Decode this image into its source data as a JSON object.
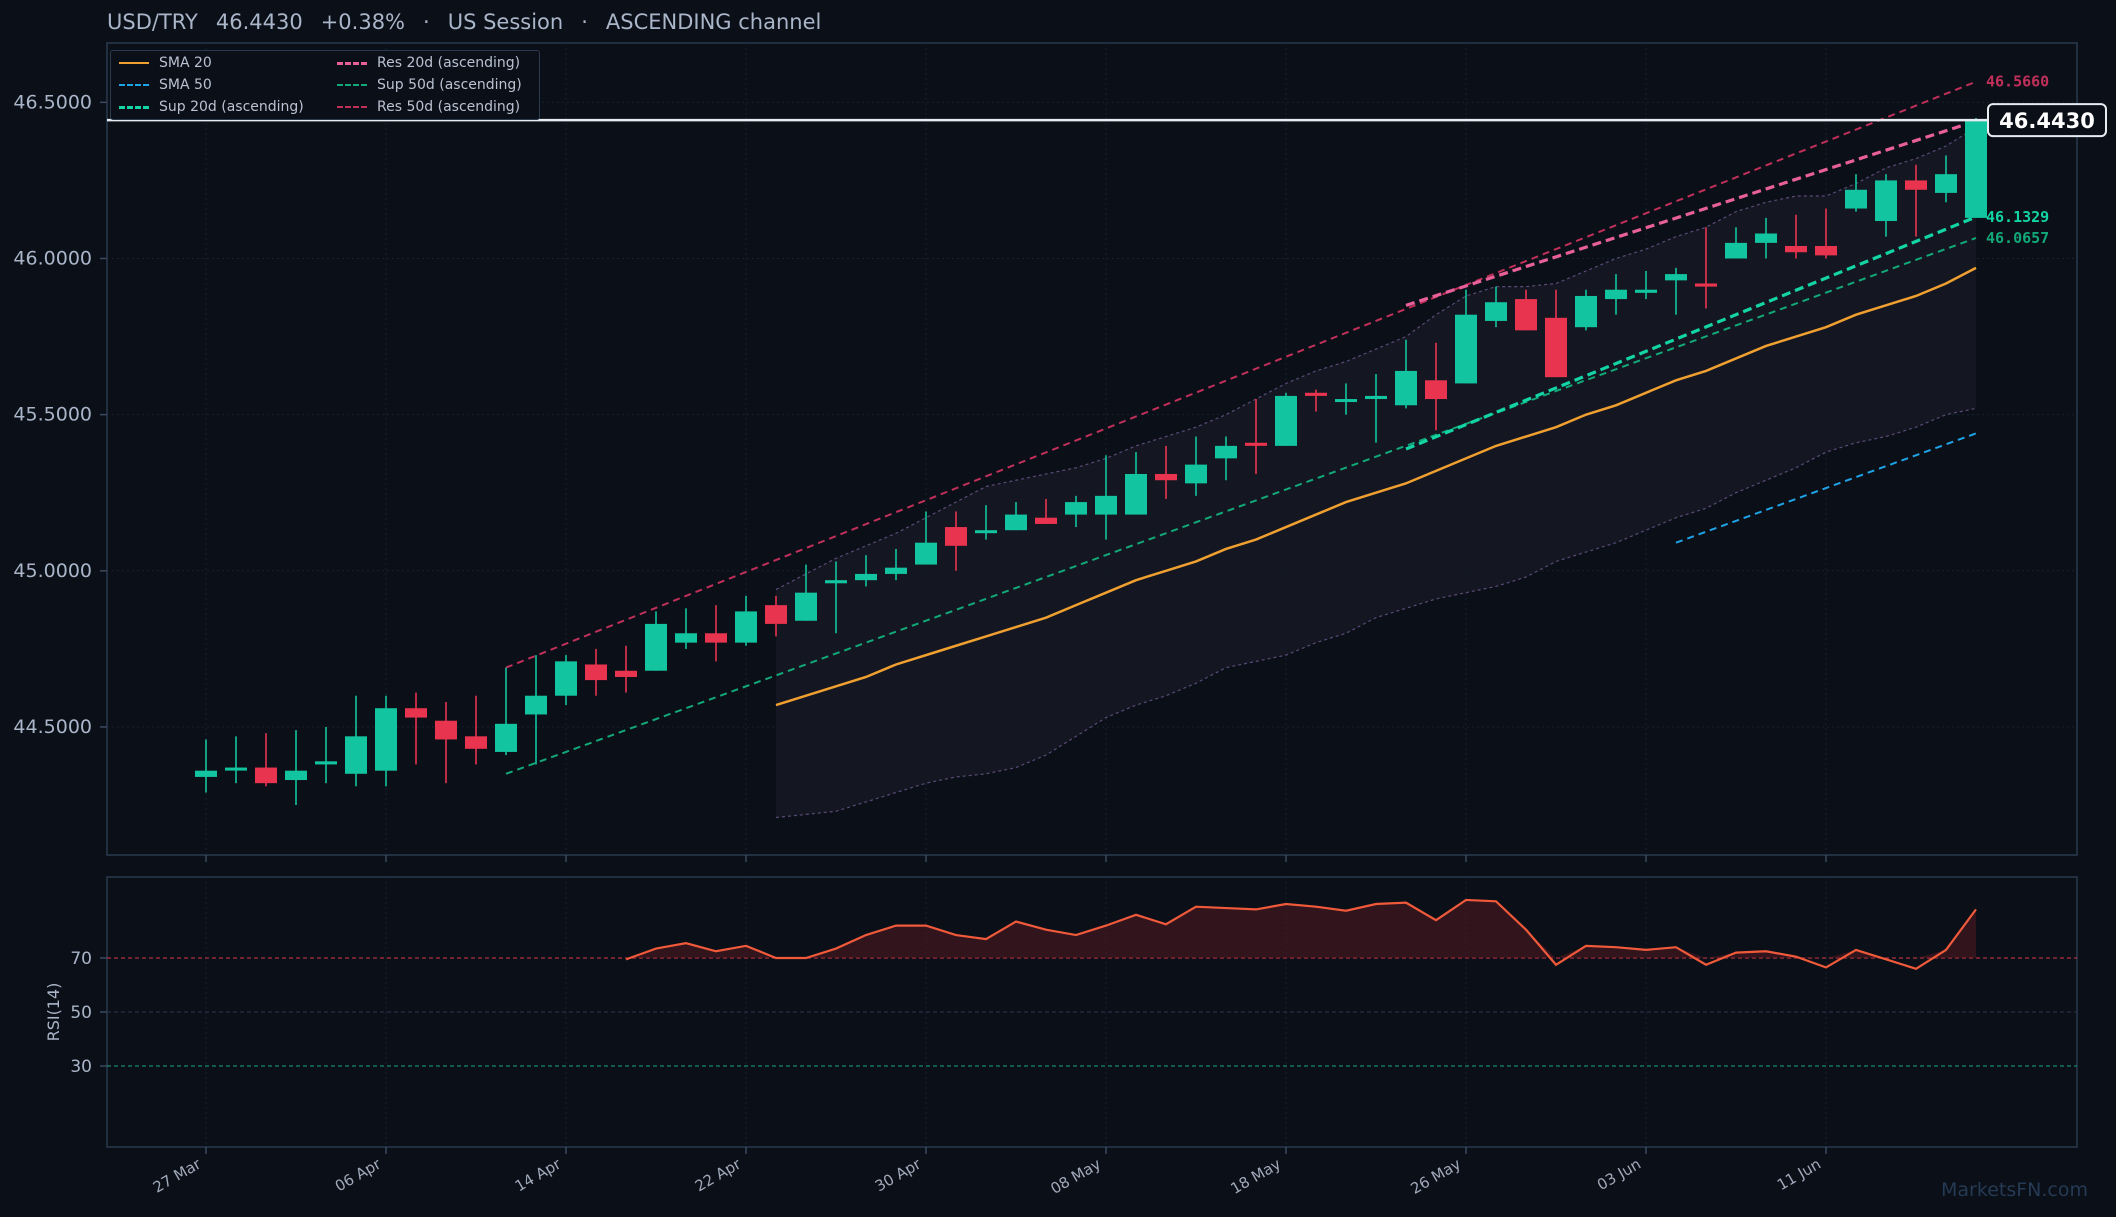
{
  "header": {
    "symbol": "USD/TRY",
    "price": "46.4430",
    "change": "+0.38%",
    "session": "US Session",
    "channel": "ASCENDING channel",
    "separator": "·"
  },
  "legend": [
    {
      "label": "SMA 20",
      "color": "#f0a030",
      "style": "solid"
    },
    {
      "label": "SMA 50",
      "color": "#1fa3e8",
      "style": "dashed"
    },
    {
      "label": "Sup 20d (ascending)",
      "color": "#13d4a4",
      "style": "dashed-bold"
    },
    {
      "label": "Res 20d (ascending)",
      "color": "#e8609a",
      "style": "dashed-bold"
    },
    {
      "label": "Sup 50d (ascending)",
      "color": "#12a878",
      "style": "dashed"
    },
    {
      "label": "Res 50d (ascending)",
      "color": "#c0305a",
      "style": "dashed"
    }
  ],
  "watermark": "MarketsFN.com",
  "colors": {
    "up": "#13c4a0",
    "down": "#e8344f",
    "background": "#0b0f17",
    "panel_border": "#2a3a4f"
  },
  "chart_data": {
    "type": "candlestick",
    "price_axis": {
      "ticks": [
        44.5,
        45.0,
        45.5,
        46.0,
        46.5
      ],
      "tick_labels": [
        "44.5000",
        "45.0000",
        "45.5000",
        "46.0000",
        "46.5000"
      ],
      "range": [
        44.09,
        46.69
      ]
    },
    "x_axis": {
      "tick_labels": [
        "27 Mar",
        "06 Apr",
        "14 Apr",
        "22 Apr",
        "30 Apr",
        "08 May",
        "18 May",
        "26 May",
        "03 Jun",
        "11 Jun"
      ],
      "tick_index": [
        0,
        6,
        12,
        18,
        24,
        30,
        36,
        42,
        48,
        54
      ]
    },
    "candles": [
      [
        44.34,
        44.36,
        44.29,
        44.46
      ],
      [
        44.37,
        44.37,
        44.32,
        44.47
      ],
      [
        44.37,
        44.32,
        44.31,
        44.48
      ],
      [
        44.33,
        44.36,
        44.25,
        44.49
      ],
      [
        44.38,
        44.39,
        44.32,
        44.5
      ],
      [
        44.35,
        44.47,
        44.31,
        44.6
      ],
      [
        44.36,
        44.56,
        44.31,
        44.6
      ],
      [
        44.56,
        44.53,
        44.38,
        44.61
      ],
      [
        44.52,
        44.46,
        44.32,
        44.58
      ],
      [
        44.47,
        44.43,
        44.38,
        44.6
      ],
      [
        44.42,
        44.51,
        44.41,
        44.69
      ],
      [
        44.54,
        44.6,
        44.38,
        44.73
      ],
      [
        44.6,
        44.71,
        44.57,
        44.73
      ],
      [
        44.7,
        44.65,
        44.6,
        44.75
      ],
      [
        44.68,
        44.66,
        44.61,
        44.76
      ],
      [
        44.68,
        44.83,
        44.68,
        44.87
      ],
      [
        44.77,
        44.8,
        44.75,
        44.88
      ],
      [
        44.8,
        44.77,
        44.71,
        44.89
      ],
      [
        44.77,
        44.87,
        44.76,
        44.92
      ],
      [
        44.89,
        44.83,
        44.79,
        44.92
      ],
      [
        44.84,
        44.93,
        44.84,
        45.02
      ],
      [
        44.96,
        44.97,
        44.8,
        45.03
      ],
      [
        44.97,
        44.99,
        44.95,
        45.05
      ],
      [
        44.99,
        45.01,
        44.97,
        45.07
      ],
      [
        45.02,
        45.09,
        45.02,
        45.19
      ],
      [
        45.14,
        45.08,
        45.0,
        45.19
      ],
      [
        45.13,
        45.13,
        45.1,
        45.21
      ],
      [
        45.13,
        45.18,
        45.13,
        45.22
      ],
      [
        45.17,
        45.15,
        45.15,
        45.23
      ],
      [
        45.18,
        45.22,
        45.14,
        45.24
      ],
      [
        45.18,
        45.24,
        45.1,
        45.37
      ],
      [
        45.18,
        45.31,
        45.18,
        45.38
      ],
      [
        45.31,
        45.29,
        45.23,
        45.4
      ],
      [
        45.28,
        45.34,
        45.24,
        45.43
      ],
      [
        45.36,
        45.4,
        45.29,
        45.43
      ],
      [
        45.41,
        45.4,
        45.31,
        45.55
      ],
      [
        45.4,
        45.56,
        45.4,
        45.57
      ],
      [
        45.57,
        45.56,
        45.51,
        45.58
      ],
      [
        45.55,
        45.55,
        45.5,
        45.6
      ],
      [
        45.55,
        45.56,
        45.41,
        45.63
      ],
      [
        45.53,
        45.64,
        45.52,
        45.74
      ],
      [
        45.61,
        45.55,
        45.45,
        45.73
      ],
      [
        45.6,
        45.82,
        45.6,
        45.9
      ],
      [
        45.8,
        45.86,
        45.78,
        45.91
      ],
      [
        45.87,
        45.77,
        45.77,
        45.9
      ],
      [
        45.81,
        45.62,
        45.62,
        45.9
      ],
      [
        45.78,
        45.88,
        45.77,
        45.9
      ],
      [
        45.87,
        45.9,
        45.82,
        45.95
      ],
      [
        45.89,
        45.9,
        45.87,
        45.96
      ],
      [
        45.93,
        45.95,
        45.82,
        45.97
      ],
      [
        45.92,
        45.91,
        45.84,
        46.1
      ],
      [
        46.0,
        46.05,
        46.0,
        46.1
      ],
      [
        46.05,
        46.08,
        46.0,
        46.13
      ],
      [
        46.04,
        46.02,
        46.0,
        46.14
      ],
      [
        46.04,
        46.01,
        46.0,
        46.16
      ],
      [
        46.16,
        46.22,
        46.15,
        46.27
      ],
      [
        46.12,
        46.25,
        46.07,
        46.27
      ],
      [
        46.25,
        46.22,
        46.07,
        46.3
      ],
      [
        46.21,
        46.27,
        46.18,
        46.33
      ],
      [
        46.13,
        46.44,
        46.13,
        46.45
      ]
    ],
    "sma20": {
      "start": 19,
      "values": [
        44.57,
        44.6,
        44.63,
        44.66,
        44.7,
        44.73,
        44.76,
        44.79,
        44.82,
        44.85,
        44.89,
        44.93,
        44.97,
        45.0,
        45.03,
        45.07,
        45.1,
        45.14,
        45.18,
        45.22,
        45.25,
        45.28,
        45.32,
        45.36,
        45.4,
        45.43,
        45.46,
        45.5,
        45.53,
        45.57,
        45.61,
        45.64,
        45.68,
        45.72,
        45.75,
        45.78,
        45.82,
        45.85,
        45.88,
        45.92,
        45.97
      ]
    },
    "bb_upper": {
      "start": 19,
      "values": [
        44.94,
        44.99,
        45.04,
        45.08,
        45.12,
        45.17,
        45.22,
        45.27,
        45.29,
        45.31,
        45.33,
        45.36,
        45.4,
        45.43,
        45.46,
        45.5,
        45.55,
        45.6,
        45.64,
        45.67,
        45.71,
        45.75,
        45.82,
        45.88,
        45.91,
        45.91,
        45.92,
        45.96,
        46.0,
        46.03,
        46.07,
        46.1,
        46.15,
        46.18,
        46.2,
        46.2,
        46.24,
        46.29,
        46.32,
        46.36,
        46.42
      ]
    },
    "bb_lower": {
      "start": 19,
      "values": [
        44.21,
        44.22,
        44.23,
        44.26,
        44.29,
        44.32,
        44.34,
        44.35,
        44.37,
        44.41,
        44.47,
        44.53,
        44.57,
        44.6,
        44.64,
        44.69,
        44.71,
        44.73,
        44.77,
        44.8,
        44.85,
        44.88,
        44.91,
        44.93,
        44.95,
        44.98,
        45.03,
        45.06,
        45.09,
        45.13,
        45.17,
        45.2,
        45.25,
        45.29,
        45.33,
        45.38,
        45.41,
        45.43,
        45.46,
        45.5,
        45.52
      ]
    },
    "lines": [
      {
        "name": "Sup 50d (ascending)",
        "from": [
          10,
          44.35
        ],
        "to": [
          59,
          46.0657
        ],
        "end_label": "46.0657"
      },
      {
        "name": "Res 50d (ascending)",
        "from": [
          10,
          44.69
        ],
        "to": [
          59,
          46.566
        ],
        "end_label": "46.5660"
      },
      {
        "name": "Sup 20d (ascending)",
        "from": [
          40,
          45.39
        ],
        "to": [
          59,
          46.1329
        ],
        "end_label": "46.1329"
      },
      {
        "name": "Res 20d (ascending)",
        "from": [
          40,
          45.85
        ],
        "to": [
          59,
          46.44
        ]
      },
      {
        "name": "SMA 50",
        "from": [
          49,
          45.09
        ],
        "to": [
          59,
          45.44
        ]
      }
    ],
    "last_price": {
      "value": 46.443,
      "label": "46.4430"
    },
    "rsi": {
      "label": "RSI(14)",
      "levels": [
        70,
        50,
        30
      ],
      "level_labels": [
        "70",
        "50",
        "30"
      ],
      "range": [
        0,
        100
      ],
      "start": 14,
      "values": [
        69.5,
        73.5,
        75.5,
        72.5,
        74.5,
        70,
        70,
        73.5,
        78.5,
        82,
        82,
        78.5,
        77,
        83.5,
        80.5,
        78.5,
        82,
        86,
        82.5,
        89,
        88.5,
        88,
        90,
        89,
        87.5,
        90,
        90.5,
        84,
        91.5,
        91,
        80.5,
        67.5,
        74.5,
        74,
        73,
        74,
        67.5,
        72,
        72.5,
        70.5,
        66.5,
        73,
        69.5,
        66,
        73,
        88
      ]
    }
  }
}
